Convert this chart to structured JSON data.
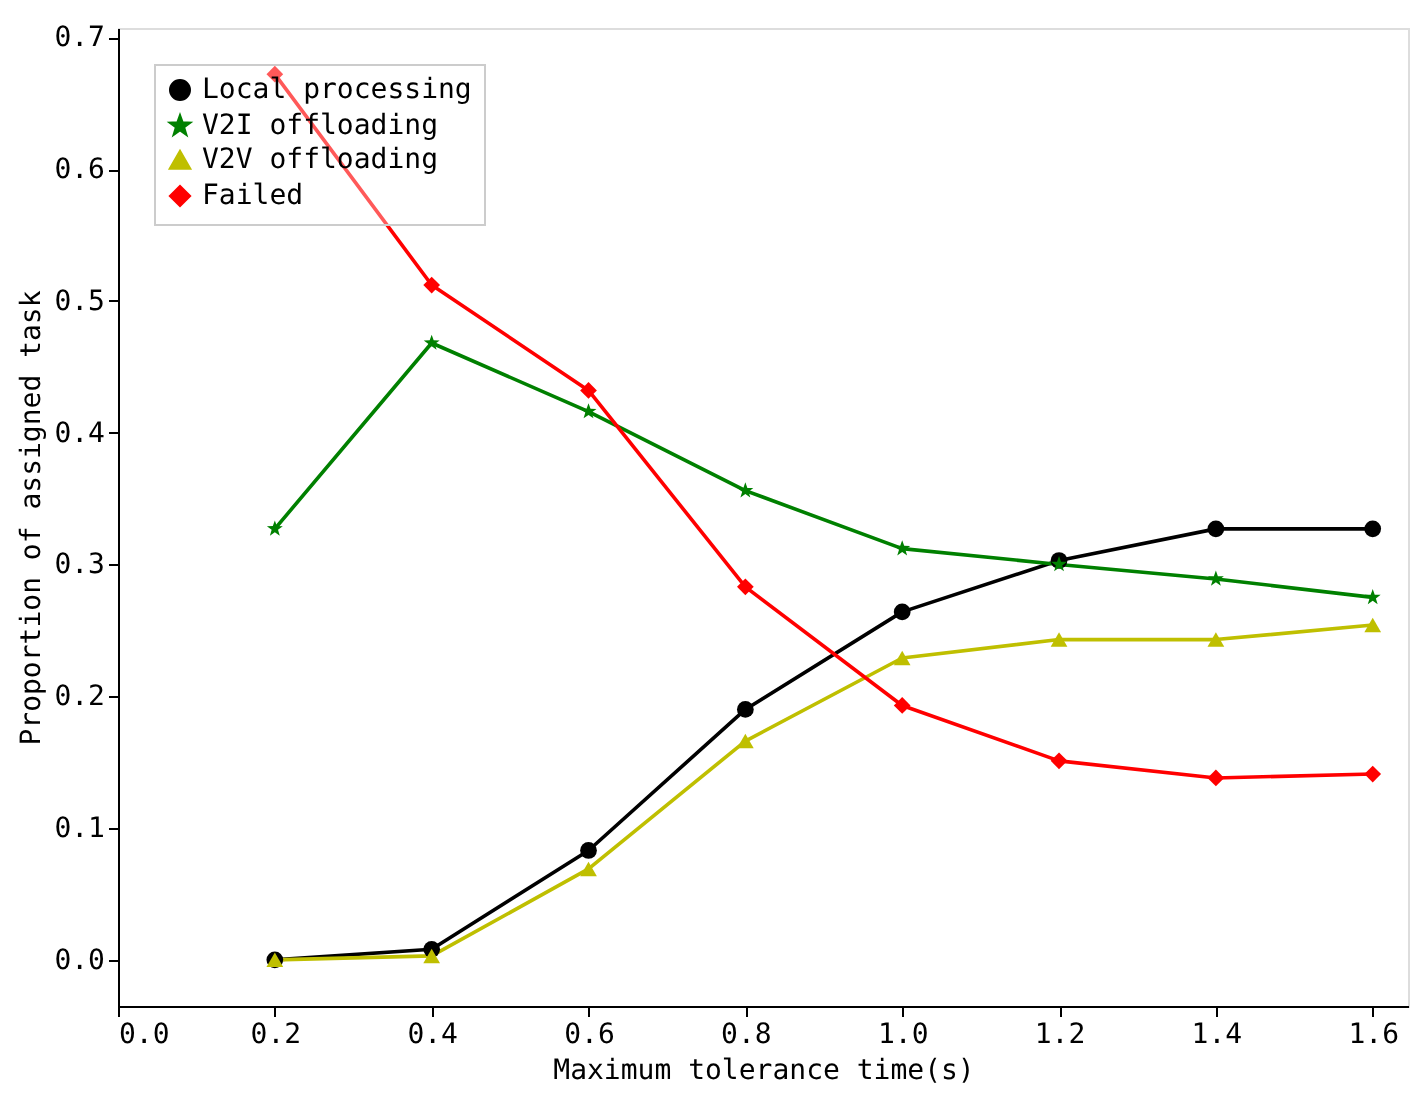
{
  "chart_data": {
    "type": "line",
    "xlabel": "Maximum tolerance time(s)",
    "ylabel": "Proportion of assigned task",
    "x": [
      0.2,
      0.4,
      0.6,
      0.8,
      1.0,
      1.2,
      1.4,
      1.6
    ],
    "series": [
      {
        "name": "Local processing",
        "color": "#000000",
        "marker": "circle",
        "values": [
          0.0,
          0.008,
          0.083,
          0.19,
          0.264,
          0.303,
          0.327,
          0.327
        ]
      },
      {
        "name": "V2I offloading",
        "color": "#008000",
        "marker": "star",
        "values": [
          0.327,
          0.468,
          0.416,
          0.356,
          0.312,
          0.3,
          0.289,
          0.275
        ]
      },
      {
        "name": "V2V offloading",
        "color": "#bfbf00",
        "marker": "triangle",
        "values": [
          0.0,
          0.003,
          0.069,
          0.166,
          0.229,
          0.243,
          0.243,
          0.254
        ]
      },
      {
        "name": "Failed",
        "color": "#ff0000",
        "marker": "diamond",
        "values": [
          0.672,
          0.512,
          0.432,
          0.283,
          0.193,
          0.151,
          0.138,
          0.141
        ]
      }
    ],
    "xlim": [
      0.0,
      1.645
    ],
    "ylim": [
      -0.035,
      0.707
    ],
    "xticks": [
      {
        "value": 0.0,
        "label": "0.0"
      },
      {
        "value": 0.2,
        "label": "0.2"
      },
      {
        "value": 0.4,
        "label": "0.4"
      },
      {
        "value": 0.6,
        "label": "0.6"
      },
      {
        "value": 0.8,
        "label": "0.8"
      },
      {
        "value": 1.0,
        "label": "1.0"
      },
      {
        "value": 1.2,
        "label": "1.2"
      },
      {
        "value": 1.4,
        "label": "1.4"
      },
      {
        "value": 1.6,
        "label": "1.6"
      }
    ],
    "yticks": [
      {
        "value": 0.0,
        "label": "0.0"
      },
      {
        "value": 0.1,
        "label": "0.1"
      },
      {
        "value": 0.2,
        "label": "0.2"
      },
      {
        "value": 0.3,
        "label": "0.3"
      },
      {
        "value": 0.4,
        "label": "0.4"
      },
      {
        "value": 0.5,
        "label": "0.5"
      },
      {
        "value": 0.6,
        "label": "0.6"
      },
      {
        "value": 0.7,
        "label": "0.7"
      }
    ],
    "grid": false,
    "legend": "top left",
    "line_style": "solid"
  }
}
